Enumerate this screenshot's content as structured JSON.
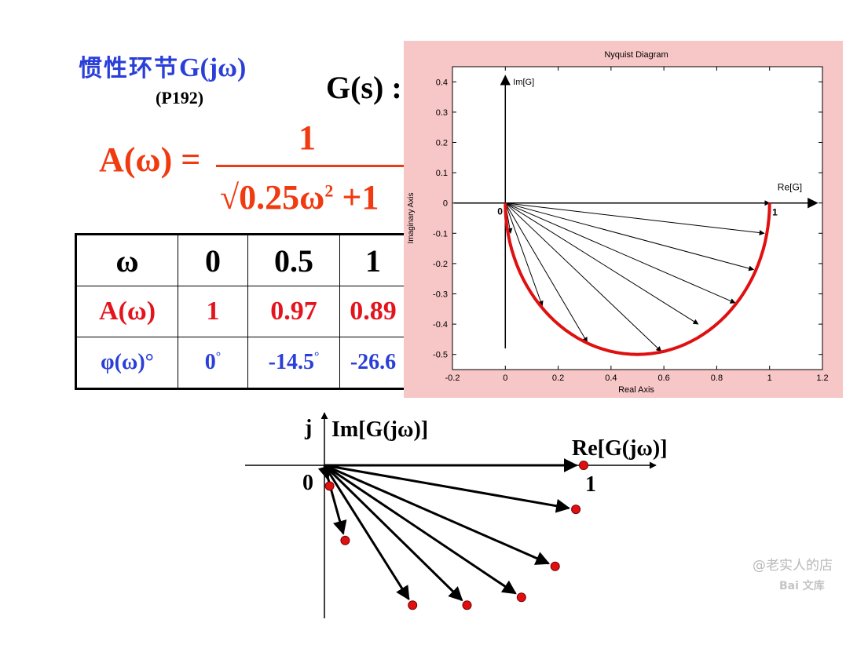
{
  "slide": {
    "title_cn": "惯性环节",
    "title_math": "G(jω)",
    "page_ref": "(P192)",
    "g_of_s": "G(s) :"
  },
  "formula": {
    "lhs": "A(ω) =",
    "numerator": "1",
    "denominator_prefix": "√0.25ω",
    "denominator_exp": "2",
    "denominator_suffix": " +1"
  },
  "table": {
    "header": [
      "ω",
      "0",
      "0.5",
      "1"
    ],
    "amplitude_row": [
      "A(ω)",
      "1",
      "0.97",
      "0.89"
    ],
    "phase_row": [
      "φ(ω)°",
      "0",
      "-14.5",
      "-26.6"
    ],
    "degree_mark": "°"
  },
  "chart_data": {
    "type": "line",
    "title": "Nyquist Diagram",
    "xlabel": "Real Axis",
    "ylabel": "Imaginary Axis",
    "xlim": [
      -0.2,
      1.2
    ],
    "ylim": [
      -0.55,
      0.45
    ],
    "xticks": [
      -0.2,
      0,
      0.2,
      0.4,
      0.6,
      0.8,
      1,
      1.2
    ],
    "yticks": [
      0.4,
      0.3,
      0.2,
      0.1,
      0,
      -0.1,
      -0.2,
      -0.3,
      -0.4,
      -0.5
    ],
    "tick_labels_x": [
      "-0.2",
      "0",
      "0.2",
      "0.4",
      "0.6",
      "0.8",
      "1",
      "1.2"
    ],
    "tick_labels_y": [
      "0.4",
      "0.3",
      "0.2",
      "0.1",
      "0",
      "-0.1",
      "-0.2",
      "-0.3",
      "-0.4",
      "-0.5"
    ],
    "axis_labels": {
      "im": "Im[G]",
      "re": "Re[G]",
      "origin": "0",
      "one": "1"
    },
    "grid": false,
    "curve_color": "#e01010",
    "series": [
      {
        "values": [
          [
            1.0,
            0.0
          ],
          [
            0.97,
            -0.17
          ],
          [
            0.89,
            -0.31
          ],
          [
            0.8,
            -0.4
          ],
          [
            0.69,
            -0.46
          ],
          [
            0.5,
            -0.5
          ],
          [
            0.31,
            -0.46
          ],
          [
            0.2,
            -0.4
          ],
          [
            0.1,
            -0.3
          ],
          [
            0.04,
            -0.2
          ],
          [
            0.01,
            -0.1
          ],
          [
            0.0,
            0.0
          ]
        ]
      }
    ],
    "vectors": [
      [
        1.0,
        0.0
      ],
      [
        0.98,
        -0.1
      ],
      [
        0.94,
        -0.22
      ],
      [
        0.87,
        -0.33
      ],
      [
        0.73,
        -0.4
      ],
      [
        0.59,
        -0.49
      ],
      [
        0.31,
        -0.46
      ],
      [
        0.14,
        -0.34
      ],
      [
        0.02,
        -0.1
      ]
    ]
  },
  "sketch": {
    "axis_labels": {
      "j": "j",
      "im": "Im[G(jω)]",
      "re": "Re[G(jω)]",
      "origin": "0",
      "one": "1"
    },
    "points": [
      [
        1.0,
        0.0
      ],
      [
        0.97,
        -0.17
      ],
      [
        0.89,
        -0.39
      ],
      [
        0.76,
        -0.51
      ],
      [
        0.55,
        -0.54
      ],
      [
        0.34,
        -0.54
      ],
      [
        0.08,
        -0.29
      ],
      [
        0.02,
        -0.08
      ]
    ]
  },
  "watermark": {
    "line1": "@老实人的店",
    "line2": "Bai 文库"
  },
  "colors": {
    "title_blue": "#2a3fd8",
    "formula_red": "#f03a10",
    "plot_bg": "#f7c6c6",
    "point_red": "#e01010"
  }
}
